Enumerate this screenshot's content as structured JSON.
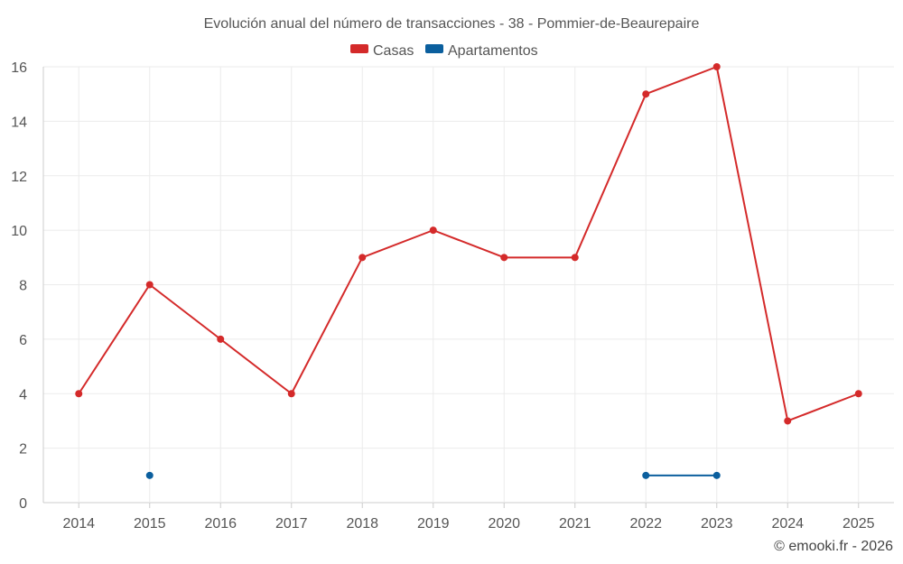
{
  "chart_data": {
    "type": "line",
    "title": "Evolución anual del número de transacciones - 38 - Pommier-de-Beaurepaire",
    "xlabel": "",
    "ylabel": "",
    "categories": [
      "2014",
      "2015",
      "2016",
      "2017",
      "2018",
      "2019",
      "2020",
      "2021",
      "2022",
      "2023",
      "2024",
      "2025"
    ],
    "ylim": [
      0,
      16
    ],
    "yticks": [
      0,
      2,
      4,
      6,
      8,
      10,
      12,
      14,
      16
    ],
    "grid": true,
    "legend_position": "top-center",
    "series": [
      {
        "name": "Casas",
        "color": "#d42a2a",
        "values": [
          4,
          8,
          6,
          4,
          9,
          10,
          9,
          9,
          15,
          16,
          3,
          4
        ]
      },
      {
        "name": "Apartamentos",
        "color": "#0b5f9e",
        "values": [
          null,
          1,
          null,
          null,
          null,
          null,
          null,
          null,
          1,
          1,
          null,
          null
        ]
      }
    ]
  },
  "credit": "© emooki.fr - 2026"
}
